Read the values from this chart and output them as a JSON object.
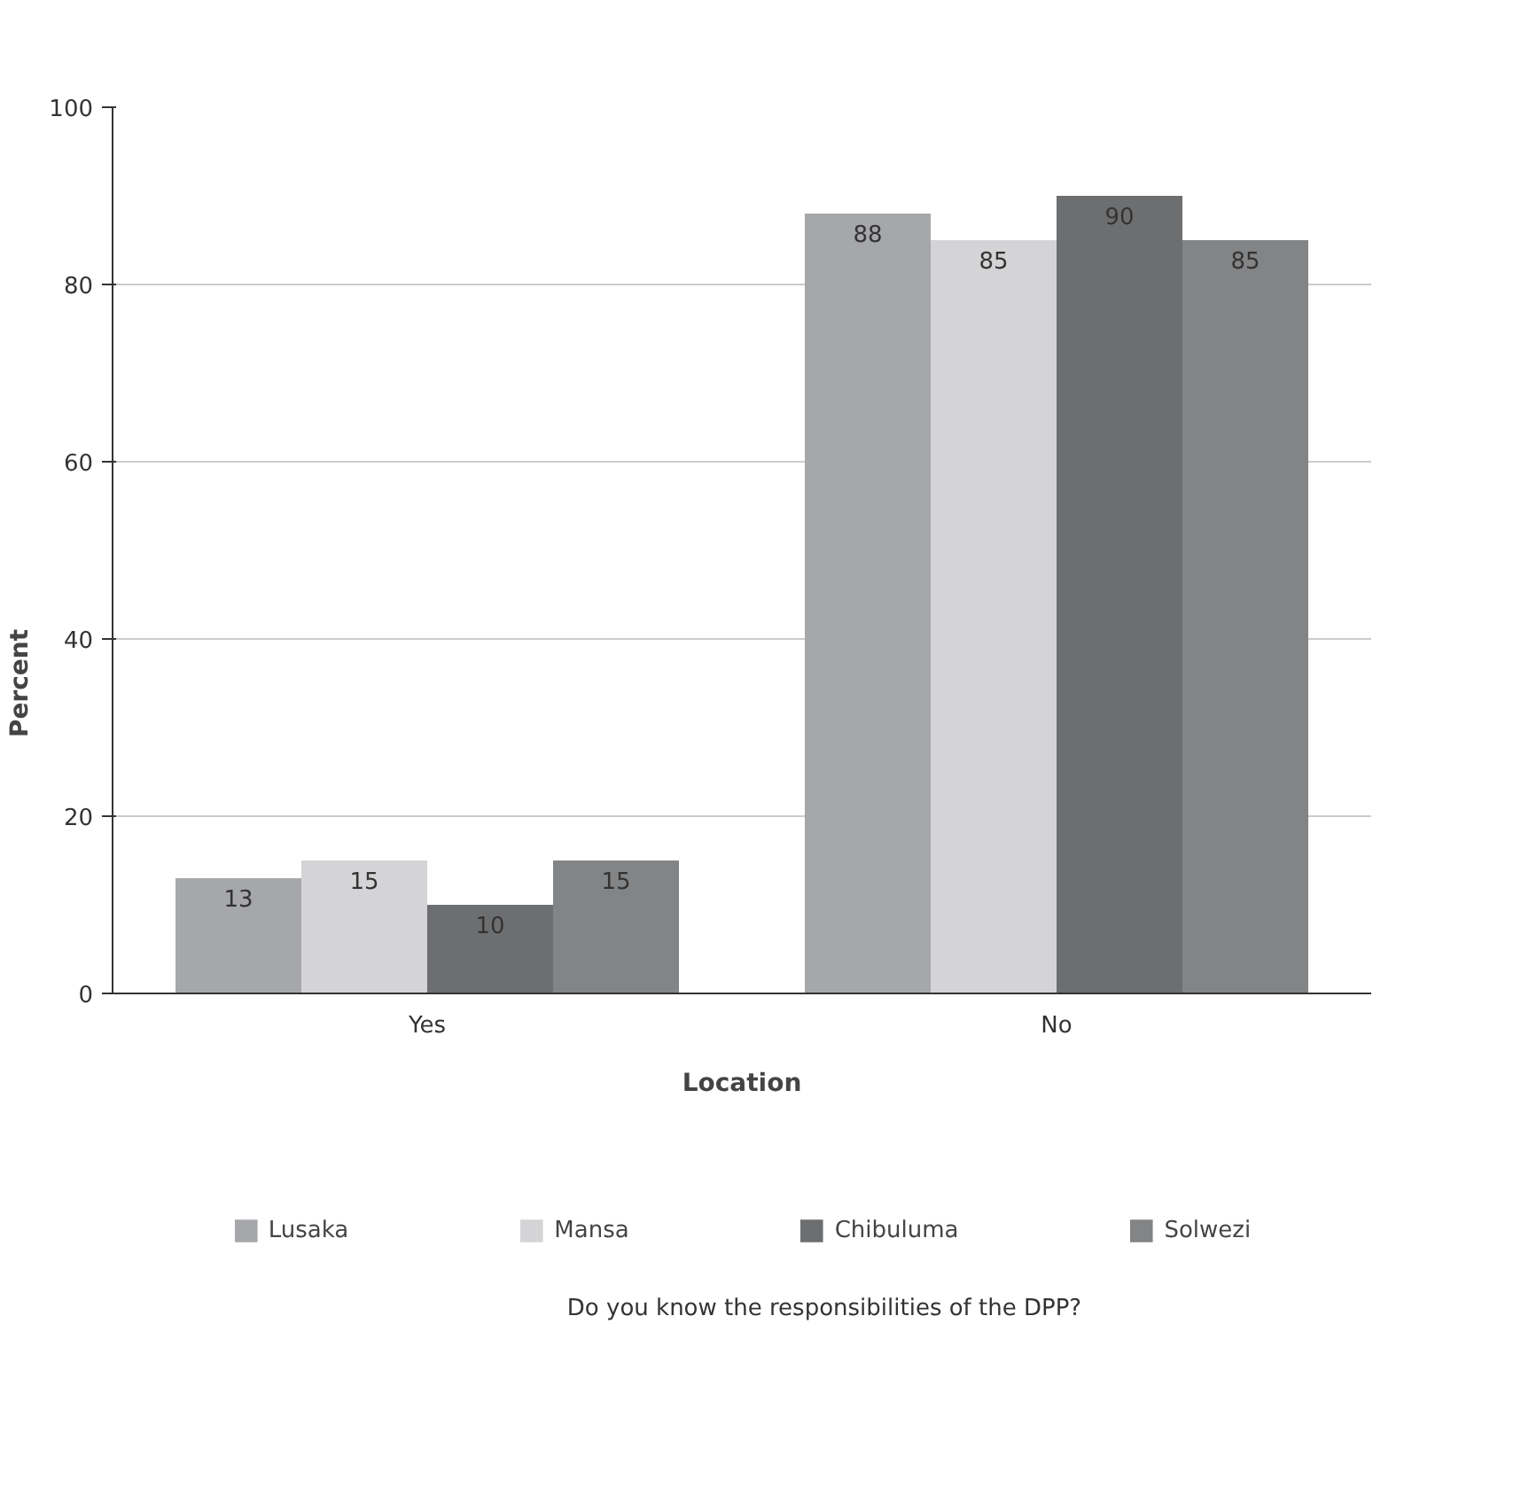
{
  "chart_data": {
    "type": "bar",
    "xlabel": "Location",
    "ylabel": "Percent",
    "categories": [
      "Yes",
      "No"
    ],
    "series": [
      {
        "name": "Lusaka",
        "color": "#a6a7aa",
        "values": [
          13,
          88
        ]
      },
      {
        "name": "Mansa",
        "color": "#d4d4d6",
        "values": [
          15,
          85
        ]
      },
      {
        "name": "Chibuluma",
        "color": "#6d6e70",
        "values": [
          10,
          90
        ]
      },
      {
        "name": "Solwezi",
        "color": "#838486",
        "values": [
          15,
          85
        ]
      }
    ],
    "ylim": [
      0,
      100
    ],
    "yticks": [
      0,
      20,
      40,
      60,
      80,
      100
    ],
    "grid": "y",
    "legend": "bottom",
    "data_labels": true,
    "annotations": [
      "Do you know the responsibilities of the DPP?"
    ]
  }
}
